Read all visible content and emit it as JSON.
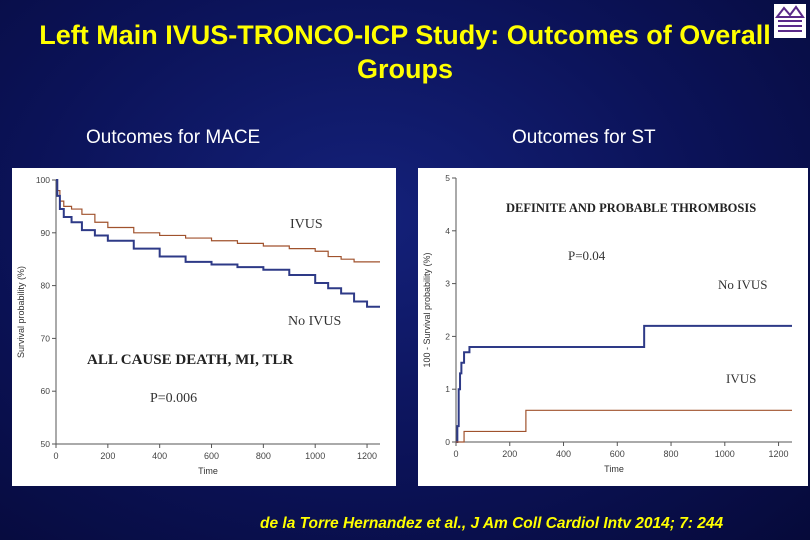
{
  "slide": {
    "title": "Left Main IVUS-TRONCO-ICP Study: Outcomes of Overall Groups",
    "title_color": "#ffff00",
    "subtitle_left": "Outcomes for MACE",
    "subtitle_right": "Outcomes for ST",
    "citation": "de la Torre Hernandez et al., J Am Coll Cardiol Intv 2014; 7: 244",
    "logo_icon": "institution-logo"
  },
  "chart_data": [
    {
      "type": "line",
      "title": "ALL CAUSE DEATH, MI, TLR",
      "annotation": "P=0.006",
      "xlabel": "Time",
      "ylabel": "Survival probability (%)",
      "xlim": [
        0,
        1250
      ],
      "ylim": [
        50,
        100
      ],
      "xticks": [
        0,
        200,
        400,
        600,
        800,
        1000,
        1200
      ],
      "yticks": [
        50,
        60,
        70,
        80,
        90,
        100
      ],
      "grid": false,
      "series": [
        {
          "name": "IVUS",
          "color": "#a0522d",
          "x": [
            0,
            5,
            15,
            30,
            60,
            100,
            150,
            200,
            300,
            400,
            500,
            600,
            700,
            800,
            900,
            1000,
            1050,
            1100,
            1150,
            1250
          ],
          "y": [
            100,
            98,
            96,
            95,
            94.5,
            93.5,
            92,
            91,
            90,
            89.5,
            89,
            88.5,
            88,
            87.5,
            87,
            86.5,
            85.5,
            85,
            84.5,
            84.5
          ]
        },
        {
          "name": "No IVUS",
          "color": "#2e3a87",
          "x": [
            0,
            5,
            15,
            30,
            60,
            100,
            150,
            200,
            300,
            400,
            500,
            600,
            700,
            800,
            900,
            1000,
            1050,
            1100,
            1150,
            1200,
            1250
          ],
          "y": [
            100,
            97,
            94.5,
            93,
            92,
            90.5,
            89.5,
            88.5,
            87,
            85.5,
            84.5,
            84,
            83.5,
            83,
            82,
            80.5,
            79.5,
            78.5,
            77,
            76,
            76
          ]
        }
      ]
    },
    {
      "type": "line",
      "title": "DEFINITE AND PROBABLE THROMBOSIS",
      "annotation": "P=0.04",
      "xlabel": "Time",
      "ylabel": "100 - Survival probability (%)",
      "xlim": [
        0,
        1250
      ],
      "ylim": [
        0,
        5
      ],
      "xticks": [
        0,
        200,
        400,
        600,
        800,
        1000,
        1200
      ],
      "yticks": [
        0,
        1,
        2,
        3,
        4,
        5
      ],
      "grid": false,
      "series": [
        {
          "name": "No IVUS",
          "color": "#2e3a87",
          "x": [
            0,
            5,
            10,
            15,
            20,
            30,
            50,
            700,
            1250
          ],
          "y": [
            0,
            0.3,
            1.0,
            1.3,
            1.5,
            1.7,
            1.8,
            2.2,
            2.2
          ]
        },
        {
          "name": "IVUS",
          "color": "#a0522d",
          "x": [
            0,
            30,
            260,
            1250
          ],
          "y": [
            0,
            0.2,
            0.6,
            0.6
          ]
        }
      ]
    }
  ]
}
